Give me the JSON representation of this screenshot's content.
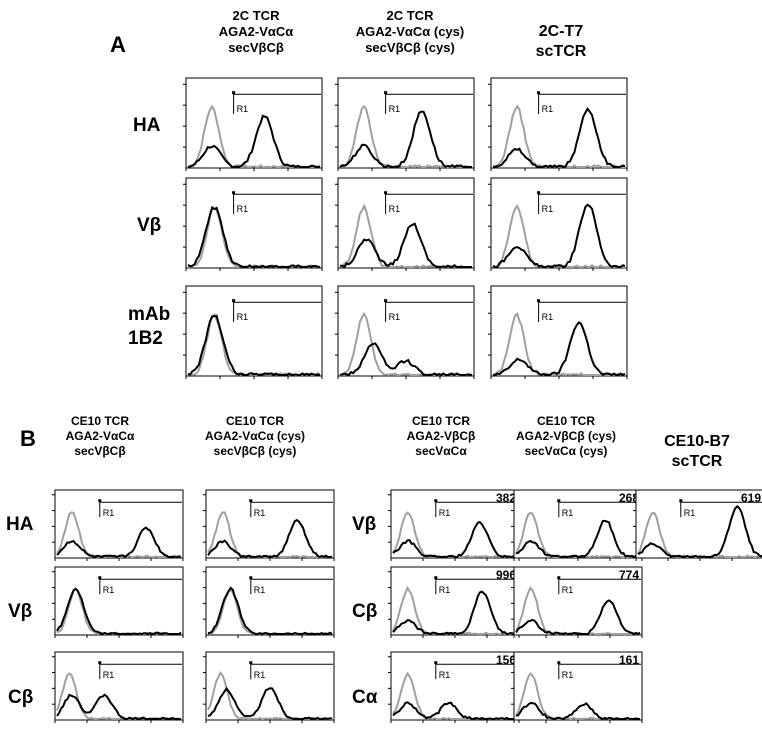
{
  "panel_a": {
    "label": "A",
    "columns": [
      {
        "line1": "2C TCR",
        "line2": "AGA2-VαCα",
        "line3": "secVβCβ"
      },
      {
        "line1": "2C TCR",
        "line2": "AGA2-VαCα (cys)",
        "line3": "secVβCβ (cys)"
      },
      {
        "line1": "2C-T7",
        "line2": "scTCR",
        "line3": ""
      }
    ],
    "rows": [
      {
        "line1": "HA",
        "line2": ""
      },
      {
        "line1": "Vβ",
        "line2": ""
      },
      {
        "line1": "mAb",
        "line2": "1B2"
      }
    ]
  },
  "panel_b": {
    "label": "B",
    "columns": [
      {
        "line1": "CE10 TCR",
        "line2": "AGA2-VαCα",
        "line3": "secVβCβ"
      },
      {
        "line1": "CE10 TCR",
        "line2": "AGA2-VαCα (cys)",
        "line3": "secVβCβ (cys)"
      },
      {
        "line1": "CE10 TCR",
        "line2": "AGA2-VβCβ",
        "line3": "secVαCα"
      },
      {
        "line1": "CE10 TCR",
        "line2": "AGA2-VβCβ (cys)",
        "line3": "secVαCα (cys)"
      },
      {
        "line1": "CE10-B7",
        "line2": "scTCR",
        "line3": ""
      }
    ],
    "left_rows": [
      "HA",
      "Vβ",
      "Cβ"
    ],
    "right_rows": [
      "Vβ",
      "Cβ",
      "Cα"
    ]
  },
  "gate_label": "R1",
  "chart_data": {
    "type": "histogram-overlay",
    "description_units": "relative fluorescence (log decades), relative counts",
    "series_legend": [
      {
        "name": "gray",
        "color": "#a0a0a0"
      },
      {
        "name": "black",
        "color": "#000000"
      }
    ],
    "panels": [
      {
        "panel": "A",
        "row": 0,
        "col": 0,
        "neg_peak": 0.18,
        "pos": [
          [
            0.18,
            0.3
          ],
          [
            0.58,
            0.72
          ]
        ],
        "value": ""
      },
      {
        "panel": "A",
        "row": 0,
        "col": 1,
        "neg_peak": 0.18,
        "pos": [
          [
            0.18,
            0.3
          ],
          [
            0.62,
            0.8
          ]
        ],
        "value": ""
      },
      {
        "panel": "A",
        "row": 0,
        "col": 2,
        "neg_peak": 0.18,
        "pos": [
          [
            0.18,
            0.25
          ],
          [
            0.72,
            0.82
          ]
        ],
        "value": ""
      },
      {
        "panel": "A",
        "row": 1,
        "col": 0,
        "neg_peak": 0.2,
        "pos": [
          [
            0.2,
            0.85
          ]
        ],
        "value": ""
      },
      {
        "panel": "A",
        "row": 1,
        "col": 1,
        "neg_peak": 0.18,
        "pos": [
          [
            0.2,
            0.4
          ],
          [
            0.55,
            0.62
          ]
        ],
        "value": ""
      },
      {
        "panel": "A",
        "row": 1,
        "col": 2,
        "neg_peak": 0.18,
        "pos": [
          [
            0.18,
            0.3
          ],
          [
            0.72,
            0.9
          ]
        ],
        "value": ""
      },
      {
        "panel": "A",
        "row": 2,
        "col": 0,
        "neg_peak": 0.2,
        "pos": [
          [
            0.2,
            0.85
          ]
        ],
        "value": ""
      },
      {
        "panel": "A",
        "row": 2,
        "col": 1,
        "neg_peak": 0.18,
        "pos": [
          [
            0.25,
            0.45
          ],
          [
            0.5,
            0.2
          ]
        ],
        "value": ""
      },
      {
        "panel": "A",
        "row": 2,
        "col": 2,
        "neg_peak": 0.18,
        "pos": [
          [
            0.2,
            0.22
          ],
          [
            0.65,
            0.75
          ]
        ],
        "value": ""
      },
      {
        "panel": "B",
        "row": 0,
        "col": 0,
        "neg_peak": 0.12,
        "pos": [
          [
            0.12,
            0.3
          ],
          [
            0.72,
            0.55
          ]
        ],
        "value": ""
      },
      {
        "panel": "B",
        "row": 0,
        "col": 1,
        "neg_peak": 0.12,
        "pos": [
          [
            0.12,
            0.3
          ],
          [
            0.72,
            0.7
          ]
        ],
        "value": ""
      },
      {
        "panel": "B",
        "row": 0,
        "col": 2,
        "neg_peak": 0.12,
        "pos": [
          [
            0.12,
            0.3
          ],
          [
            0.7,
            0.65
          ]
        ],
        "value": "382"
      },
      {
        "panel": "B",
        "row": 0,
        "col": 3,
        "neg_peak": 0.12,
        "pos": [
          [
            0.12,
            0.3
          ],
          [
            0.72,
            0.7
          ]
        ],
        "value": "268"
      },
      {
        "panel": "B",
        "row": 0,
        "col": 4,
        "neg_peak": 0.12,
        "pos": [
          [
            0.12,
            0.25
          ],
          [
            0.8,
            0.95
          ]
        ],
        "value": "619"
      },
      {
        "panel": "B",
        "row": 1,
        "col": 0,
        "neg_peak": 0.15,
        "pos": [
          [
            0.15,
            0.85
          ]
        ],
        "value": ""
      },
      {
        "panel": "B",
        "row": 1,
        "col": 1,
        "neg_peak": 0.18,
        "pos": [
          [
            0.18,
            0.85
          ]
        ],
        "value": ""
      },
      {
        "panel": "B",
        "row": 1,
        "col": 2,
        "neg_peak": 0.12,
        "pos": [
          [
            0.12,
            0.25
          ],
          [
            0.72,
            0.8
          ]
        ],
        "value": "996"
      },
      {
        "panel": "B",
        "row": 1,
        "col": 3,
        "neg_peak": 0.12,
        "pos": [
          [
            0.12,
            0.25
          ],
          [
            0.75,
            0.65
          ]
        ],
        "value": "774"
      },
      {
        "panel": "B",
        "row": 2,
        "col": 0,
        "neg_peak": 0.1,
        "pos": [
          [
            0.12,
            0.45
          ],
          [
            0.38,
            0.45
          ]
        ],
        "value": ""
      },
      {
        "panel": "B",
        "row": 2,
        "col": 1,
        "neg_peak": 0.1,
        "pos": [
          [
            0.15,
            0.55
          ],
          [
            0.5,
            0.6
          ]
        ],
        "value": ""
      },
      {
        "panel": "B",
        "row": 2,
        "col": 2,
        "neg_peak": 0.12,
        "pos": [
          [
            0.12,
            0.3
          ],
          [
            0.45,
            0.3
          ]
        ],
        "value": "156"
      },
      {
        "panel": "B",
        "row": 2,
        "col": 3,
        "neg_peak": 0.12,
        "pos": [
          [
            0.12,
            0.3
          ],
          [
            0.55,
            0.28
          ]
        ],
        "value": "161"
      }
    ]
  }
}
